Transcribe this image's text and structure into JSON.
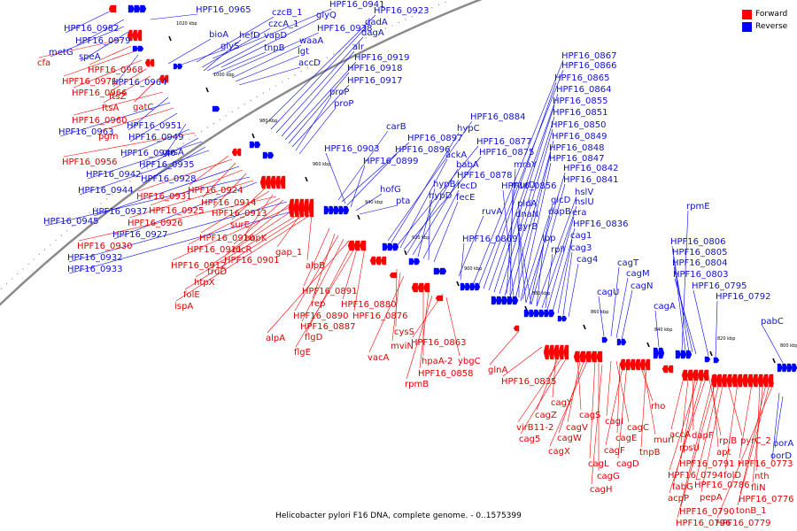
{
  "caption": "Helicobacter pylori F16 DNA, complete genome. - 0..1575399",
  "legend": [
    {
      "label": "Forward",
      "color": "#ff0000"
    },
    {
      "label": "Reverse",
      "color": "#0000ff"
    }
  ],
  "colors": {
    "forward": "#ff0000",
    "reverse": "#0000ff",
    "forward_label": "#e00000",
    "reverse_label": "#1010d0",
    "backbone": "#8a8a8a"
  },
  "scale_labels": [
    "1020 kbp",
    "1000 kbp",
    "980 kbp",
    "960 kbp",
    "940 kbp",
    "920 kbp",
    "900 kbp",
    "880 kbp",
    "860 kbp",
    "840 kbp",
    "820 kbp",
    "800 kbp"
  ],
  "genes": [
    {
      "name": "HPF16_0982",
      "strand": "reverse"
    },
    {
      "name": "HPF16_0979",
      "strand": "reverse"
    },
    {
      "name": "metG",
      "strand": "reverse"
    },
    {
      "name": "speA",
      "strand": "reverse"
    },
    {
      "name": "cfa",
      "strand": "forward"
    },
    {
      "name": "HPF16_0968",
      "strand": "forward"
    },
    {
      "name": "HPF16_0971",
      "strand": "forward"
    },
    {
      "name": "HPF16_0964",
      "strand": "reverse"
    },
    {
      "name": "HPF16_0966",
      "strand": "forward"
    },
    {
      "name": "ftsZ",
      "strand": "forward"
    },
    {
      "name": "ftsA",
      "strand": "forward"
    },
    {
      "name": "gatC",
      "strand": "forward"
    },
    {
      "name": "HPF16_0960",
      "strand": "forward"
    },
    {
      "name": "HPF16_0951",
      "strand": "reverse"
    },
    {
      "name": "HPF16_0963",
      "strand": "reverse"
    },
    {
      "name": "pgm",
      "strand": "forward"
    },
    {
      "name": "HPF16_0949",
      "strand": "reverse"
    },
    {
      "name": "gpsA",
      "strand": "reverse"
    },
    {
      "name": "HPF16_0946",
      "strand": "reverse"
    },
    {
      "name": "HPF16_0956",
      "strand": "forward"
    },
    {
      "name": "HPF16_0935",
      "strand": "reverse"
    },
    {
      "name": "HPF16_0942",
      "strand": "reverse"
    },
    {
      "name": "HPF16_0928",
      "strand": "reverse"
    },
    {
      "name": "HPF16_0944",
      "strand": "reverse"
    },
    {
      "name": "HPF16_0924",
      "strand": "forward"
    },
    {
      "name": "HPF16_0931",
      "strand": "forward"
    },
    {
      "name": "HPF16_0914",
      "strand": "forward"
    },
    {
      "name": "HPF16_0937",
      "strand": "reverse"
    },
    {
      "name": "HPF16_0925",
      "strand": "forward"
    },
    {
      "name": "HPF16_0913",
      "strand": "forward"
    },
    {
      "name": "HPF16_0945",
      "strand": "reverse"
    },
    {
      "name": "HPF16_0926",
      "strand": "forward"
    },
    {
      "name": "HPF16_0927",
      "strand": "reverse"
    },
    {
      "name": "surE",
      "strand": "forward"
    },
    {
      "name": "HPF16_0910",
      "strand": "forward"
    },
    {
      "name": "hopK",
      "strand": "forward"
    },
    {
      "name": "HPF16_0930",
      "strand": "forward"
    },
    {
      "name": "HPF16_0911",
      "strand": "forward"
    },
    {
      "name": "recR",
      "strand": "forward"
    },
    {
      "name": "gap_1",
      "strand": "forward"
    },
    {
      "name": "HPF16_0932",
      "strand": "reverse"
    },
    {
      "name": "HPF16_0901",
      "strand": "forward"
    },
    {
      "name": "HPF16_0912",
      "strand": "forward"
    },
    {
      "name": "truD",
      "strand": "forward"
    },
    {
      "name": "alpB",
      "strand": "forward"
    },
    {
      "name": "HPF16_0933",
      "strand": "reverse"
    },
    {
      "name": "htpX",
      "strand": "forward"
    },
    {
      "name": "folE",
      "strand": "forward"
    },
    {
      "name": "HPF16_0891",
      "strand": "forward"
    },
    {
      "name": "ispA",
      "strand": "forward"
    },
    {
      "name": "rep",
      "strand": "forward"
    },
    {
      "name": "HPF16_0880",
      "strand": "forward"
    },
    {
      "name": "HPF16_0890",
      "strand": "forward"
    },
    {
      "name": "HPF16_0876",
      "strand": "forward"
    },
    {
      "name": "HPF16_0887",
      "strand": "forward"
    },
    {
      "name": "alpA",
      "strand": "forward"
    },
    {
      "name": "flgD",
      "strand": "forward"
    },
    {
      "name": "flgE",
      "strand": "forward"
    },
    {
      "name": "cysS",
      "strand": "forward"
    },
    {
      "name": "mviN",
      "strand": "forward"
    },
    {
      "name": "vacA",
      "strand": "forward"
    },
    {
      "name": "HPF16_0863",
      "strand": "forward"
    },
    {
      "name": "hpaA-2",
      "strand": "forward"
    },
    {
      "name": "ybgC",
      "strand": "forward"
    },
    {
      "name": "HPF16_0858",
      "strand": "forward"
    },
    {
      "name": "rpmB",
      "strand": "forward"
    },
    {
      "name": "glnA",
      "strand": "forward"
    },
    {
      "name": "HPF16_0835",
      "strand": "forward"
    },
    {
      "name": "cagY",
      "strand": "forward"
    },
    {
      "name": "cagZ",
      "strand": "forward"
    },
    {
      "name": "cagS",
      "strand": "forward"
    },
    {
      "name": "virB11-2",
      "strand": "forward"
    },
    {
      "name": "cagV",
      "strand": "forward"
    },
    {
      "name": "cagI",
      "strand": "forward"
    },
    {
      "name": "cagC",
      "strand": "forward"
    },
    {
      "name": "rho",
      "strand": "forward"
    },
    {
      "name": "cag5",
      "strand": "forward"
    },
    {
      "name": "cagW",
      "strand": "forward"
    },
    {
      "name": "cagE",
      "strand": "forward"
    },
    {
      "name": "murI",
      "strand": "forward"
    },
    {
      "name": "cagX",
      "strand": "forward"
    },
    {
      "name": "cagF",
      "strand": "forward"
    },
    {
      "name": "tnpB",
      "strand": "forward"
    },
    {
      "name": "cagL",
      "strand": "forward"
    },
    {
      "name": "cagD",
      "strand": "forward"
    },
    {
      "name": "cagG",
      "strand": "forward"
    },
    {
      "name": "cagH",
      "strand": "forward"
    },
    {
      "name": "accA",
      "strand": "forward"
    },
    {
      "name": "dapF",
      "strand": "forward"
    },
    {
      "name": "rpsU",
      "strand": "forward"
    },
    {
      "name": "rpiB",
      "strand": "forward"
    },
    {
      "name": "pyrC_2",
      "strand": "forward"
    },
    {
      "name": "apt",
      "strand": "forward"
    },
    {
      "name": "HPF16_0791",
      "strand": "forward"
    },
    {
      "name": "HPF16_0773",
      "strand": "forward"
    },
    {
      "name": "HPF16_0794",
      "strand": "forward"
    },
    {
      "name": "folD",
      "strand": "forward"
    },
    {
      "name": "nth",
      "strand": "forward"
    },
    {
      "name": "fabG",
      "strand": "forward"
    },
    {
      "name": "HPF16_0786",
      "strand": "forward"
    },
    {
      "name": "fliN",
      "strand": "forward"
    },
    {
      "name": "acpP",
      "strand": "forward"
    },
    {
      "name": "pepA",
      "strand": "forward"
    },
    {
      "name": "HPF16_0776",
      "strand": "forward"
    },
    {
      "name": "HPF16_0790",
      "strand": "forward"
    },
    {
      "name": "tonB_1",
      "strand": "forward"
    },
    {
      "name": "HPF16_0796",
      "strand": "forward"
    },
    {
      "name": "HPF16_0779",
      "strand": "forward"
    },
    {
      "name": "HPF16_0965",
      "strand": "reverse"
    },
    {
      "name": "HPF16_0941",
      "strand": "reverse"
    },
    {
      "name": "HPF16_0923",
      "strand": "reverse"
    },
    {
      "name": "czcB_1",
      "strand": "reverse"
    },
    {
      "name": "glyQ",
      "strand": "reverse"
    },
    {
      "name": "dadA",
      "strand": "reverse"
    },
    {
      "name": "czcA_1",
      "strand": "reverse"
    },
    {
      "name": "HPF16_0938",
      "strand": "reverse"
    },
    {
      "name": "dagA",
      "strand": "reverse"
    },
    {
      "name": "bioA",
      "strand": "reverse"
    },
    {
      "name": "hefD",
      "strand": "reverse"
    },
    {
      "name": "vapD",
      "strand": "reverse"
    },
    {
      "name": "waaA",
      "strand": "reverse"
    },
    {
      "name": "glyS",
      "strand": "reverse"
    },
    {
      "name": "tnpB",
      "strand": "reverse"
    },
    {
      "name": "alr",
      "strand": "reverse"
    },
    {
      "name": "lgt",
      "strand": "reverse"
    },
    {
      "name": "HPF16_0919",
      "strand": "reverse"
    },
    {
      "name": "accD",
      "strand": "reverse"
    },
    {
      "name": "HPF16_0918",
      "strand": "reverse"
    },
    {
      "name": "HPF16_0917",
      "strand": "reverse"
    },
    {
      "name": "proP",
      "strand": "reverse"
    },
    {
      "name": "proP",
      "strand": "reverse"
    },
    {
      "name": "carB",
      "strand": "reverse"
    },
    {
      "name": "HPF16_0897",
      "strand": "reverse"
    },
    {
      "name": "HPF16_0903",
      "strand": "reverse"
    },
    {
      "name": "HPF16_0896",
      "strand": "reverse"
    },
    {
      "name": "HPF16_0899",
      "strand": "reverse"
    },
    {
      "name": "hofG",
      "strand": "reverse"
    },
    {
      "name": "pta",
      "strand": "reverse"
    },
    {
      "name": "HPF16_0884",
      "strand": "reverse"
    },
    {
      "name": "hypC",
      "strand": "reverse"
    },
    {
      "name": "HPF16_0877",
      "strand": "reverse"
    },
    {
      "name": "ackA",
      "strand": "reverse"
    },
    {
      "name": "HPF16_0875",
      "strand": "reverse"
    },
    {
      "name": "babA",
      "strand": "reverse"
    },
    {
      "name": "HPF16_0878",
      "strand": "reverse"
    },
    {
      "name": "hypB",
      "strand": "reverse"
    },
    {
      "name": "fecD",
      "strand": "reverse"
    },
    {
      "name": "hypD",
      "strand": "reverse"
    },
    {
      "name": "fecE",
      "strand": "reverse"
    },
    {
      "name": "ruvA",
      "strand": "reverse"
    },
    {
      "name": "HPF16_0869",
      "strand": "reverse"
    },
    {
      "name": "HPF16_0867",
      "strand": "reverse"
    },
    {
      "name": "HPF16_0866",
      "strand": "reverse"
    },
    {
      "name": "HPF16_0865",
      "strand": "reverse"
    },
    {
      "name": "HPF16_0864",
      "strand": "reverse"
    },
    {
      "name": "HPF16_0855",
      "strand": "reverse"
    },
    {
      "name": "HPF16_0851",
      "strand": "reverse"
    },
    {
      "name": "HPF16_0850",
      "strand": "reverse"
    },
    {
      "name": "HPF16_0849",
      "strand": "reverse"
    },
    {
      "name": "mraY",
      "strand": "reverse"
    },
    {
      "name": "HPF16_0848",
      "strand": "reverse"
    },
    {
      "name": "murD",
      "strand": "reverse"
    },
    {
      "name": "HPF16_0847",
      "strand": "reverse"
    },
    {
      "name": "HPF16_0856",
      "strand": "reverse"
    },
    {
      "name": "HPF16_0842",
      "strand": "reverse"
    },
    {
      "name": "HPF16_0841",
      "strand": "reverse"
    },
    {
      "name": "pldA",
      "strand": "reverse"
    },
    {
      "name": "hslV",
      "strand": "reverse"
    },
    {
      "name": "glcD",
      "strand": "reverse"
    },
    {
      "name": "dnaN",
      "strand": "reverse"
    },
    {
      "name": "hslU",
      "strand": "reverse"
    },
    {
      "name": "dapB",
      "strand": "reverse"
    },
    {
      "name": "gyrB",
      "strand": "reverse"
    },
    {
      "name": "era",
      "strand": "reverse"
    },
    {
      "name": "HPF16_0836",
      "strand": "reverse"
    },
    {
      "name": "lpp",
      "strand": "reverse"
    },
    {
      "name": "cag1",
      "strand": "reverse"
    },
    {
      "name": "cag3",
      "strand": "reverse"
    },
    {
      "name": "rplI",
      "strand": "reverse"
    },
    {
      "name": "cag4",
      "strand": "reverse"
    },
    {
      "name": "cagT",
      "strand": "reverse"
    },
    {
      "name": "cagM",
      "strand": "reverse"
    },
    {
      "name": "cagN",
      "strand": "reverse"
    },
    {
      "name": "cagU",
      "strand": "reverse"
    },
    {
      "name": "cagA",
      "strand": "reverse"
    },
    {
      "name": "rpmE",
      "strand": "reverse"
    },
    {
      "name": "HPF16_0806",
      "strand": "reverse"
    },
    {
      "name": "HPF16_0805",
      "strand": "reverse"
    },
    {
      "name": "HPF16_0804",
      "strand": "reverse"
    },
    {
      "name": "HPF16_0803",
      "strand": "reverse"
    },
    {
      "name": "HPF16_0795",
      "strand": "reverse"
    },
    {
      "name": "HPF16_0792",
      "strand": "reverse"
    },
    {
      "name": "pabC",
      "strand": "reverse"
    },
    {
      "name": "oorA",
      "strand": "reverse"
    },
    {
      "name": "oorD",
      "strand": "reverse"
    }
  ]
}
